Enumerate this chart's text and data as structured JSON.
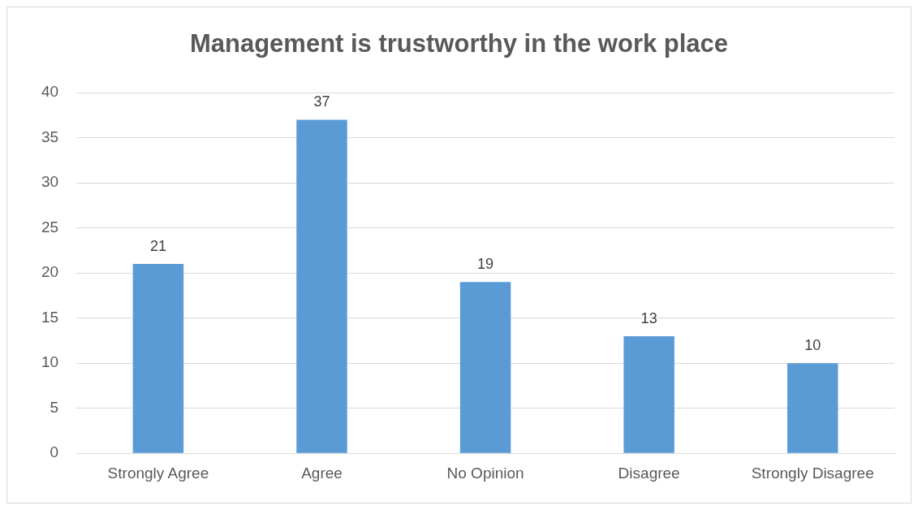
{
  "chart_data": {
    "type": "bar",
    "title": "Management is trustworthy in the work place",
    "categories": [
      "Strongly Agree",
      "Agree",
      "No Opinion",
      "Disagree",
      "Strongly Disagree"
    ],
    "values": [
      21,
      37,
      19,
      13,
      10
    ],
    "color": "#5b9bd5",
    "ylim": [
      0,
      40
    ],
    "yticks": [
      0,
      5,
      10,
      15,
      20,
      25,
      30,
      35,
      40
    ],
    "grid": "y",
    "data_labels": true,
    "legend": false
  }
}
